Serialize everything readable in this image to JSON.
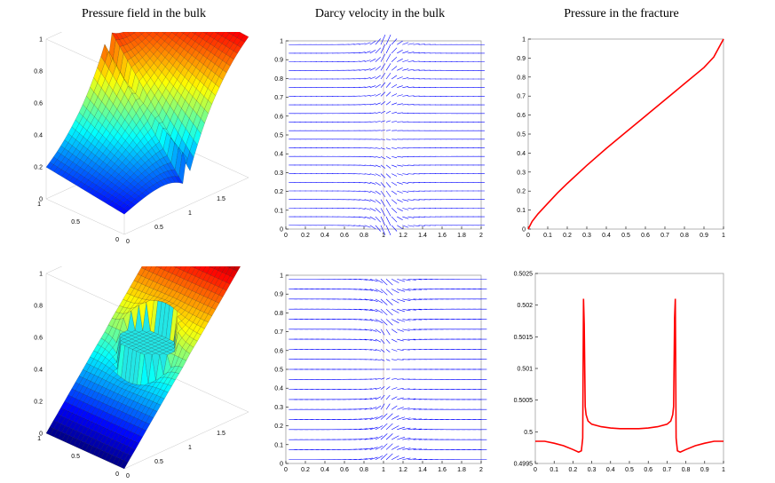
{
  "titles": {
    "col1": "Pressure field in the bulk",
    "col2": "Darcy velocity in the bulk",
    "col3": "Pressure in the fracture"
  },
  "colors": {
    "axis": "#000000",
    "frame": "#a0a0a0",
    "arrow": "#0000ff",
    "fracture_line": "#ff0000",
    "fracture_marker": "#d8c8c0",
    "ellipse": "#22e6e6"
  },
  "chart_data": [
    {
      "id": "surf-top",
      "type": "surface",
      "title": "Pressure field in the bulk",
      "xlim": [
        0,
        2
      ],
      "ylim": [
        0,
        1
      ],
      "zlim": [
        0,
        1
      ],
      "x_ticks": [
        "0",
        "0.5",
        "1",
        "1.5",
        "2"
      ],
      "y_ticks": [
        "0",
        "0.5",
        "1"
      ],
      "z_ticks": [
        "0",
        "0.2",
        "0.4",
        "0.6",
        "0.8",
        "1"
      ],
      "colormap": "jet",
      "feature": "conductive fracture along x = 1"
    },
    {
      "id": "quiver-top",
      "type": "quiver",
      "title": "Darcy velocity in the bulk",
      "xlim": [
        0,
        2
      ],
      "ylim": [
        0,
        1
      ],
      "x_ticks": [
        "0",
        "0.2",
        "0.4",
        "0.6",
        "0.8",
        "1",
        "1.2",
        "1.4",
        "1.6",
        "1.8",
        "2"
      ],
      "y_ticks": [
        "0",
        "0.1",
        "0.2",
        "0.3",
        "0.4",
        "0.5",
        "0.6",
        "0.7",
        "0.8",
        "0.9",
        "1"
      ],
      "fracture_x": 1,
      "scale": 0.5
    },
    {
      "id": "line-top",
      "type": "line",
      "title": "Pressure in the fracture",
      "xlim": [
        0,
        1
      ],
      "ylim": [
        0,
        1
      ],
      "x_ticks": [
        "0",
        "0.1",
        "0.2",
        "0.3",
        "0.4",
        "0.5",
        "0.6",
        "0.7",
        "0.8",
        "0.9",
        "1"
      ],
      "y_ticks": [
        "0",
        "0.1",
        "0.2",
        "0.3",
        "0.4",
        "0.5",
        "0.6",
        "0.7",
        "0.8",
        "0.9",
        "1"
      ],
      "x": [
        0,
        0.02,
        0.05,
        0.1,
        0.15,
        0.2,
        0.3,
        0.4,
        0.5,
        0.6,
        0.7,
        0.8,
        0.9,
        0.95,
        1.0
      ],
      "y": [
        0,
        0.04,
        0.08,
        0.135,
        0.19,
        0.24,
        0.335,
        0.425,
        0.51,
        0.595,
        0.68,
        0.765,
        0.85,
        0.905,
        1.0
      ]
    },
    {
      "id": "surf-bottom",
      "type": "surface",
      "xlim": [
        0,
        2
      ],
      "ylim": [
        0,
        1
      ],
      "zlim": [
        0,
        1
      ],
      "x_ticks": [
        "0",
        "0.5",
        "1",
        "1.5",
        "2"
      ],
      "y_ticks": [
        "0",
        "0.5",
        "1"
      ],
      "z_ticks": [
        "0",
        "0.2",
        "0.4",
        "0.6",
        "0.8",
        "1"
      ],
      "colormap": "jet",
      "feature": "blocking elliptical inclusion near center"
    },
    {
      "id": "quiver-bottom",
      "type": "quiver",
      "xlim": [
        0,
        2
      ],
      "ylim": [
        0,
        1
      ],
      "x_ticks": [
        "0",
        "0.2",
        "0.4",
        "0.6",
        "0.8",
        "1",
        "1.2",
        "1.4",
        "1.6",
        "1.8",
        "2"
      ],
      "y_ticks": [
        "0",
        "0.1",
        "0.2",
        "0.3",
        "0.4",
        "0.5",
        "0.6",
        "0.7",
        "0.8",
        "0.9",
        "1"
      ],
      "fracture_x": 1,
      "fracture_ylim": [
        0.25,
        0.75
      ],
      "scale": 0.5
    },
    {
      "id": "line-bottom",
      "type": "line",
      "xlim": [
        0,
        1
      ],
      "ylim": [
        0.4995,
        0.5025
      ],
      "x_ticks": [
        "0",
        "0.1",
        "0.2",
        "0.3",
        "0.4",
        "0.5",
        "0.6",
        "0.7",
        "0.8",
        "0.9",
        "1"
      ],
      "y_ticks": [
        "0.4995",
        "0.5",
        "0.5005",
        "0.501",
        "0.5015",
        "0.502",
        "0.5025"
      ],
      "x": [
        0,
        0.05,
        0.1,
        0.15,
        0.2,
        0.23,
        0.245,
        0.252,
        0.256,
        0.26,
        0.265,
        0.27,
        0.28,
        0.3,
        0.35,
        0.4,
        0.45,
        0.5,
        0.55,
        0.6,
        0.65,
        0.7,
        0.72,
        0.73,
        0.735,
        0.74,
        0.744,
        0.748,
        0.755,
        0.77,
        0.8,
        0.85,
        0.9,
        0.95,
        1.0
      ],
      "y": [
        0.49985,
        0.49985,
        0.49982,
        0.49978,
        0.49972,
        0.49968,
        0.4997,
        0.4999,
        0.5021,
        0.5017,
        0.5004,
        0.50027,
        0.50017,
        0.50012,
        0.50008,
        0.50006,
        0.50005,
        0.50005,
        0.50005,
        0.50006,
        0.50008,
        0.50012,
        0.50017,
        0.50027,
        0.5004,
        0.5018,
        0.5021,
        0.4999,
        0.4997,
        0.49968,
        0.49972,
        0.49978,
        0.49982,
        0.49985,
        0.49985
      ]
    }
  ]
}
